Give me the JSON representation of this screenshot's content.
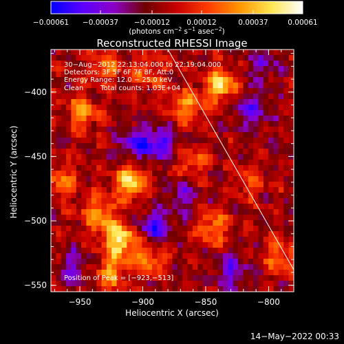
{
  "chart_data": {
    "type": "heatmap",
    "title": "Reconstructed RHESSI Image",
    "xlabel": "Heliocentric X (arcsec)",
    "ylabel": "Heliocentric Y (arcsec)",
    "xlim": [
      -973,
      -780
    ],
    "ylim": [
      -555,
      -367
    ],
    "x_ticks": [
      -950,
      -900,
      -850,
      -800
    ],
    "y_ticks": [
      -400,
      -450,
      -500,
      -550
    ],
    "x_tick_labels": [
      "−950",
      "−900",
      "−850",
      "−800"
    ],
    "y_tick_labels": [
      "−400",
      "−450",
      "−500",
      "−550"
    ],
    "colorbar": {
      "range": [
        -0.00061,
        0.00061
      ],
      "ticks": [
        -0.00061,
        -0.00037,
        -0.00012,
        0.00012,
        0.00037,
        0.00061
      ],
      "tick_labels": [
        "−0.00061",
        "−0.00037",
        "−0.00012",
        "0.00012",
        "0.00037",
        "0.00061"
      ],
      "units_main": "(photons cm",
      "units_sup1": "−2",
      "units_mid1": " s",
      "units_sup2": "−1",
      "units_mid2": " asec",
      "units_sup3": "−2",
      "units_end": ")",
      "colors": [
        "#0000ff",
        "#5a00ff",
        "#8c00c8",
        "#6e0000",
        "#c80000",
        "#ff3c00",
        "#ff9600",
        "#ffe650",
        "#ffffff"
      ]
    },
    "grid_columns": 48,
    "grid_rows": 44,
    "limb_line": {
      "start": [
        -880,
        -367
      ],
      "end": [
        -780,
        -538
      ]
    },
    "sources": [
      {
        "x": -918,
        "y": -515,
        "value": 0.00061
      },
      {
        "x": -910,
        "y": -470,
        "value": 0.00052
      },
      {
        "x": -935,
        "y": -495,
        "value": 0.0004
      },
      {
        "x": -925,
        "y": -540,
        "value": 0.00038
      },
      {
        "x": -895,
        "y": -530,
        "value": 0.00032
      },
      {
        "x": -838,
        "y": -395,
        "value": 0.0005
      },
      {
        "x": -865,
        "y": -412,
        "value": 0.00038
      },
      {
        "x": -948,
        "y": -415,
        "value": 0.00036
      },
      {
        "x": -930,
        "y": -380,
        "value": 0.0003
      },
      {
        "x": -895,
        "y": -385,
        "value": 0.00026
      },
      {
        "x": -845,
        "y": -505,
        "value": 0.00034
      },
      {
        "x": -862,
        "y": -455,
        "value": 0.00026
      },
      {
        "x": -965,
        "y": -470,
        "value": 0.0003
      },
      {
        "x": -790,
        "y": -528,
        "value": 0.00028
      },
      {
        "x": -815,
        "y": -470,
        "value": 0.0002
      },
      {
        "x": -905,
        "y": -440,
        "value": -0.00034
      },
      {
        "x": -885,
        "y": -440,
        "value": -0.0004
      },
      {
        "x": -890,
        "y": -505,
        "value": -0.00038
      },
      {
        "x": -815,
        "y": -415,
        "value": -0.00032
      },
      {
        "x": -830,
        "y": -540,
        "value": -0.0003
      },
      {
        "x": -955,
        "y": -535,
        "value": -0.00026
      },
      {
        "x": -805,
        "y": -380,
        "value": -0.00022
      },
      {
        "x": -868,
        "y": -480,
        "value": -0.00024
      }
    ]
  },
  "annotations": {
    "time_range": "30−Aug−2012 22:13:04.000 to 22:19:04.000",
    "detectors": "Detectors: 3F 5F 6F 7F 8F, Att:0",
    "energy": "Energy Range: 12.0 − 25.0 keV",
    "clean": "Clean",
    "total_counts": "Total counts: 1.03E+04",
    "peak": "Position of Peak = [−923,−513]"
  },
  "footer": {
    "timestamp": "14−May−2022 00:33"
  }
}
